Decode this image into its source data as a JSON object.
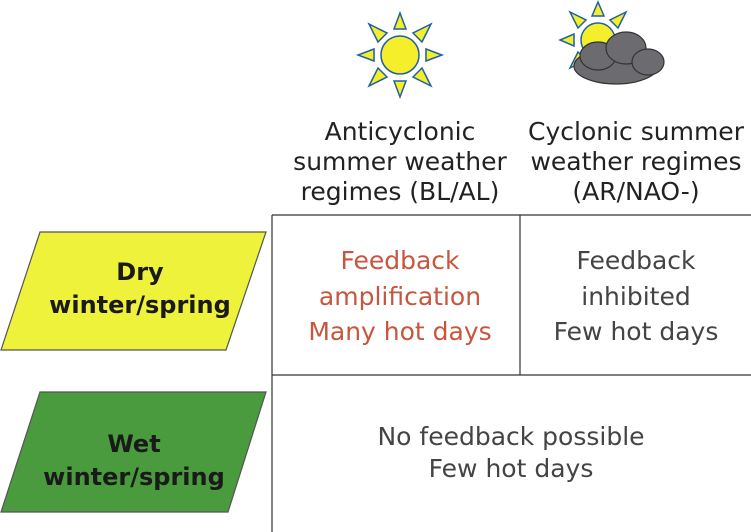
{
  "columns": [
    {
      "lines": [
        "Anticyclonic",
        "summer weather",
        "regimes (BL/AL)"
      ]
    },
    {
      "lines": [
        "Cyclonic summer",
        "weather regimes",
        "(AR/NAO-)"
      ]
    }
  ],
  "rows": [
    {
      "label": [
        "Dry",
        "winter/spring"
      ],
      "cells": [
        [
          "Feedback",
          "amplification",
          "Many hot days"
        ],
        [
          "Feedback",
          "inhibited",
          "Few hot days"
        ]
      ]
    },
    {
      "label": [
        "Wet",
        "winter/spring"
      ],
      "merged": [
        "No feedback possible",
        "Few hot days"
      ]
    }
  ]
}
